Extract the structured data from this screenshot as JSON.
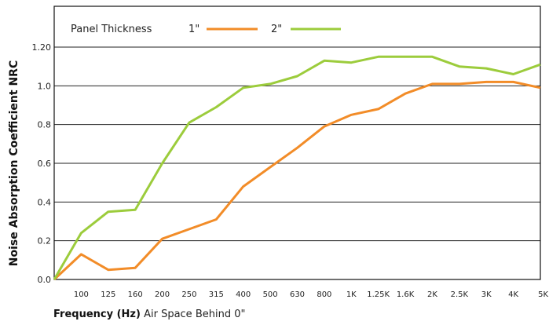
{
  "chart_data": {
    "type": "line",
    "ylabel": "Noise Absorption Coefficient NRC",
    "xlabel_bold": "Frequency (Hz)",
    "xlabel_rest": " Air Space Behind 0\"",
    "legend": {
      "title": "Panel Thickness",
      "position": "top-left"
    },
    "categories": [
      "",
      "100",
      "125",
      "160",
      "200",
      "250",
      "315",
      "400",
      "500",
      "630",
      "800",
      "1K",
      "1.25K",
      "1.6K",
      "2K",
      "2.5K",
      "3K",
      "4K",
      "5K"
    ],
    "y_ticks": [
      "0.0",
      "0.2",
      "0.4",
      "0.6",
      "0.8",
      "1.0",
      "1.20"
    ],
    "ylim": [
      0,
      1.2
    ],
    "grid": "horizontal",
    "series": [
      {
        "name": "1\"",
        "color": "#f28c28",
        "values": [
          0.0,
          0.13,
          0.05,
          0.06,
          0.21,
          0.26,
          0.31,
          0.48,
          0.58,
          0.68,
          0.79,
          0.85,
          0.88,
          0.96,
          1.01,
          1.01,
          1.02,
          1.02,
          0.99
        ]
      },
      {
        "name": "2\"",
        "color": "#9ccc3c",
        "values": [
          0.0,
          0.24,
          0.35,
          0.36,
          0.6,
          0.81,
          0.89,
          0.99,
          1.01,
          1.05,
          1.13,
          1.12,
          1.15,
          1.15,
          1.15,
          1.1,
          1.09,
          1.06,
          1.11
        ]
      }
    ]
  }
}
